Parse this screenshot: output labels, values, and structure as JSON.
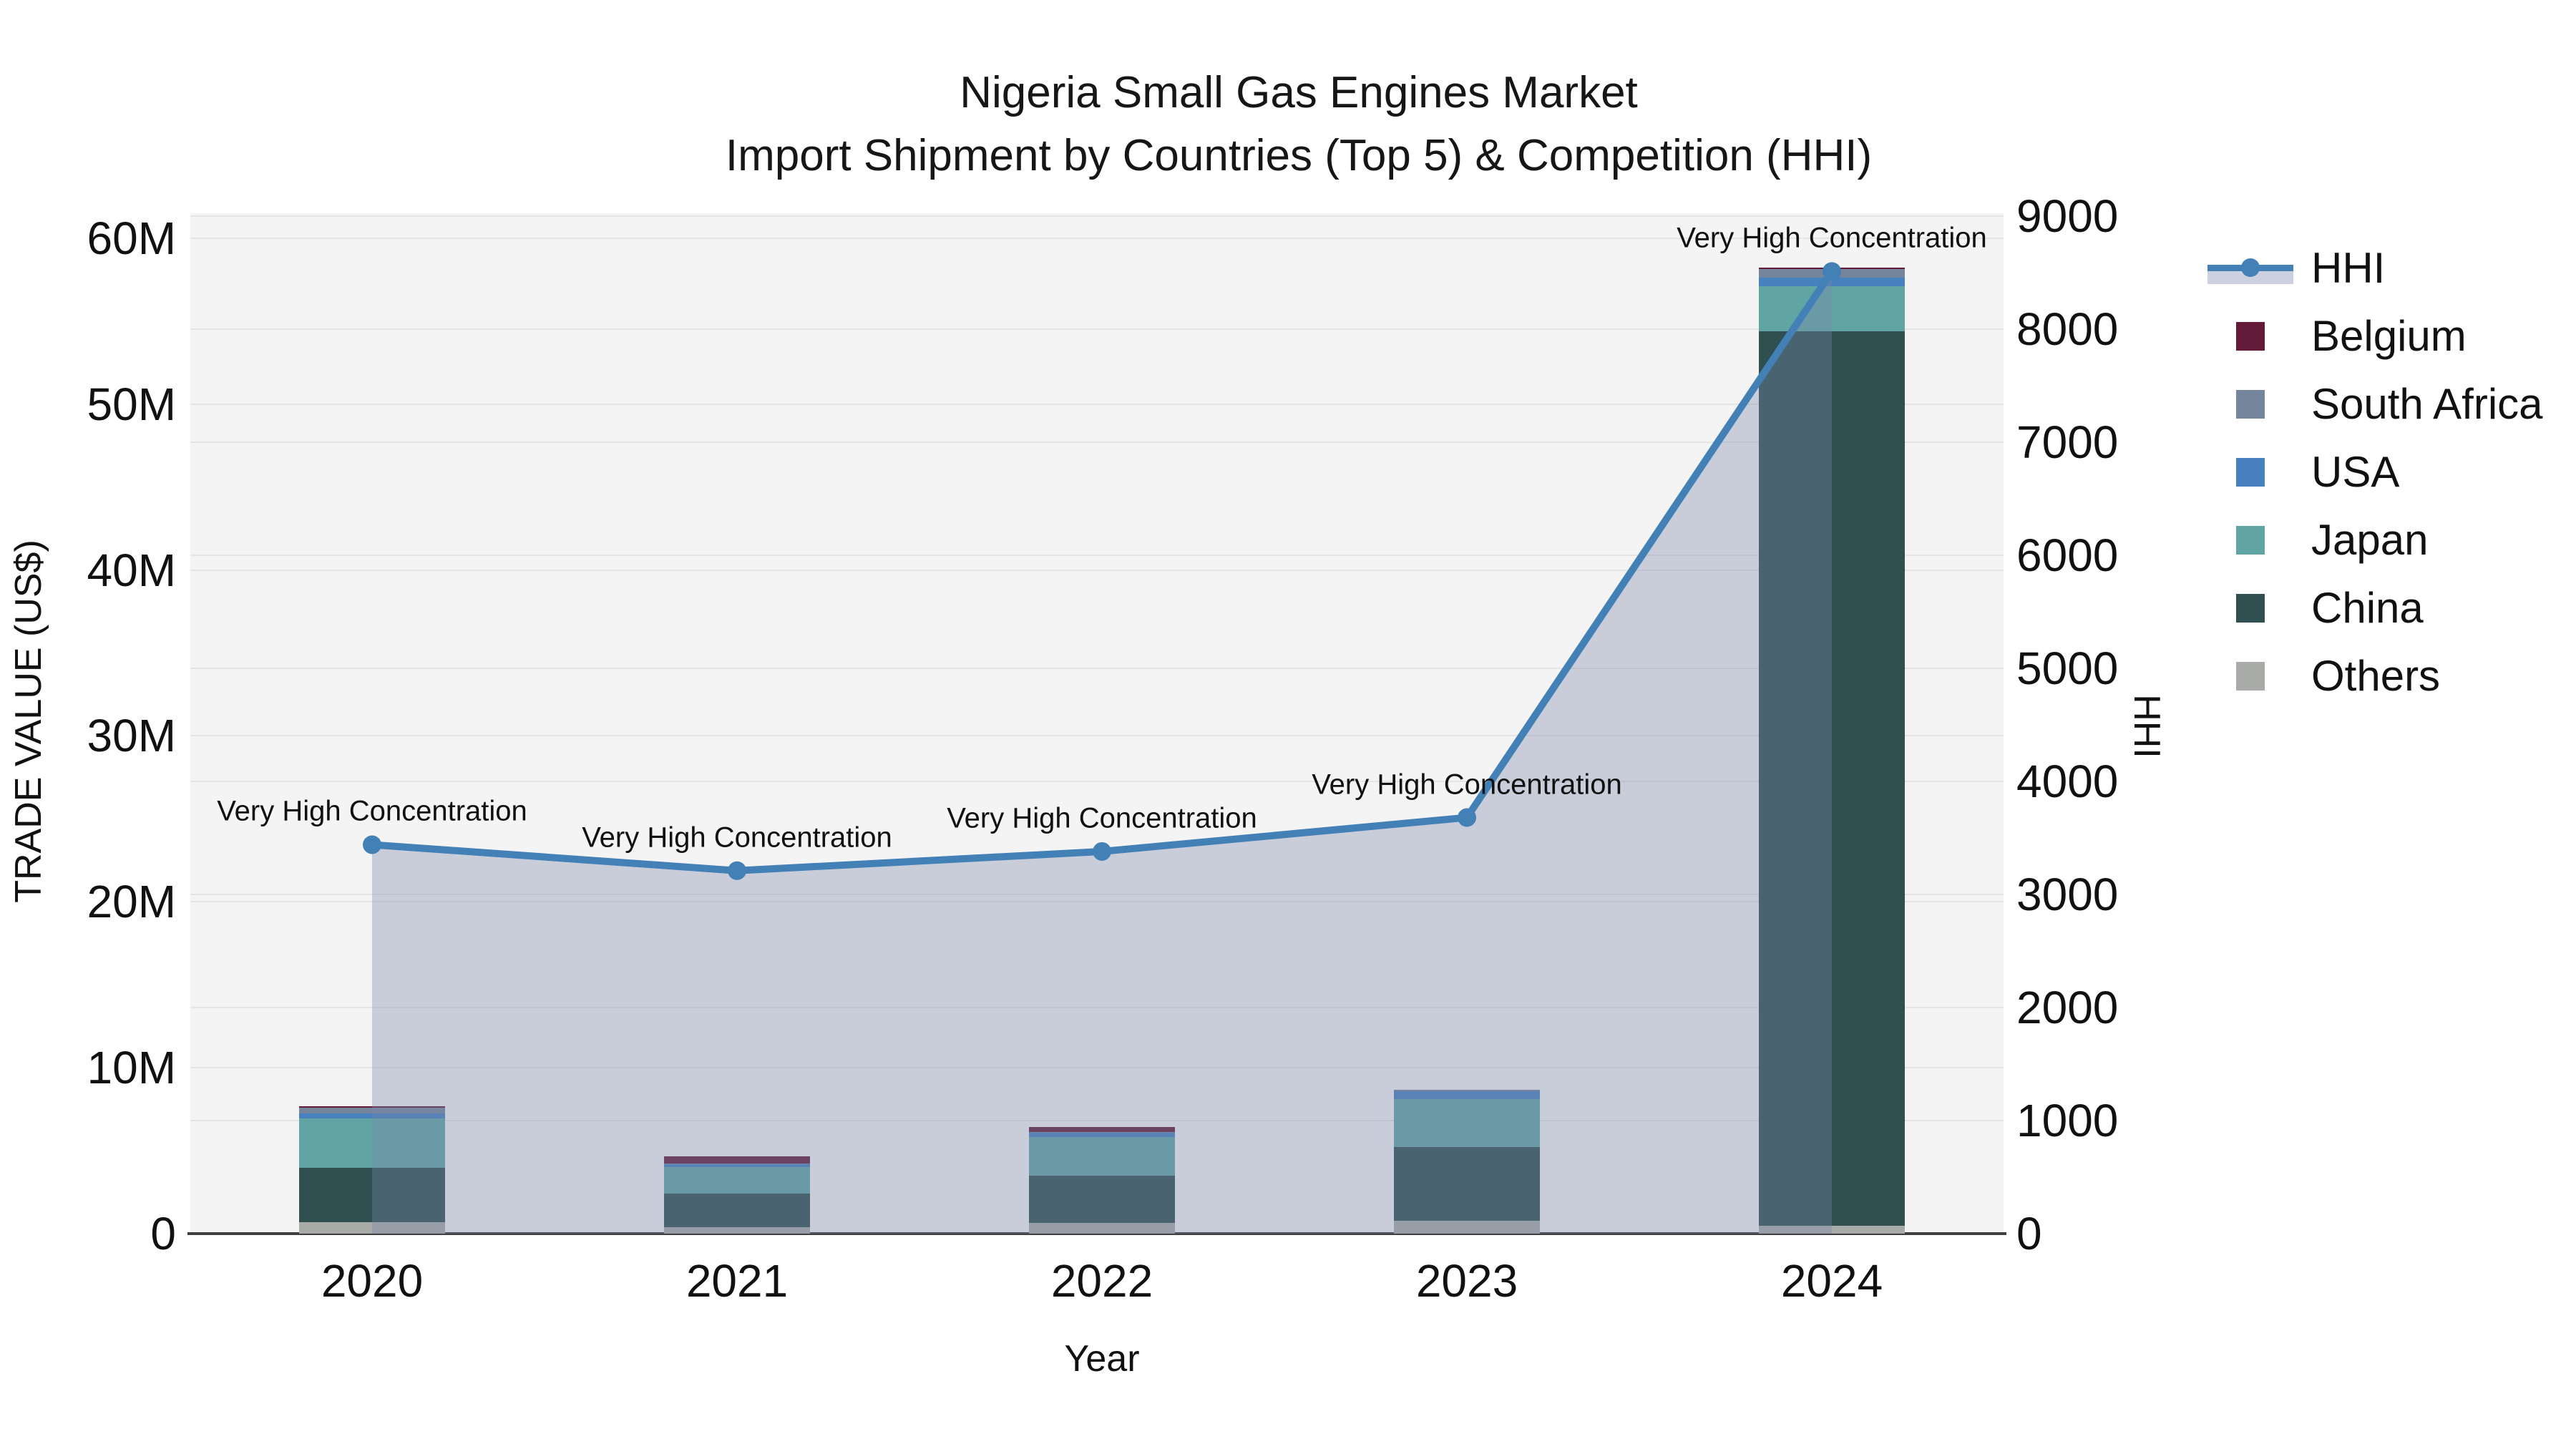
{
  "title": {
    "line1": "Nigeria Small Gas Engines Market",
    "line2": "Import Shipment by Countries (Top 5) & Competition (HHI)"
  },
  "colors": {
    "hhi_line": "#4380B5",
    "area_fill": "#7B89A8",
    "belgium": "#641B3A",
    "south_africa": "#75869C",
    "usa": "#4781BE",
    "japan": "#60A4A4",
    "china": "#2F4F50",
    "others": "#A9ABA8",
    "plot_bg": "#F4F4F4",
    "gridline": "#E5E5E5",
    "axis_line": "#3F3F3F",
    "legend_band": "#CBD1DE"
  },
  "legend": {
    "items": [
      {
        "label": "HHI",
        "type": "line",
        "color": "#4380B5"
      },
      {
        "label": "Belgium",
        "type": "square",
        "color": "#641B3A"
      },
      {
        "label": "South Africa",
        "type": "square",
        "color": "#75869C"
      },
      {
        "label": "USA",
        "type": "square",
        "color": "#4781BE"
      },
      {
        "label": "Japan",
        "type": "square",
        "color": "#60A4A4"
      },
      {
        "label": "China",
        "type": "square",
        "color": "#2F4F50"
      },
      {
        "label": "Others",
        "type": "square",
        "color": "#A9ABA8"
      }
    ]
  },
  "chart_data": {
    "type": "combo-stacked-bar-line",
    "x": [
      "2020",
      "2021",
      "2022",
      "2023",
      "2024"
    ],
    "xlabel": "Year",
    "ylabel_left": "TRADE VALUE (US$)",
    "ylabel_right": "HHI",
    "y_left_ticks": [
      {
        "label": "0",
        "value": 0
      },
      {
        "label": "10M",
        "value": 10
      },
      {
        "label": "20M",
        "value": 20
      },
      {
        "label": "30M",
        "value": 30
      },
      {
        "label": "40M",
        "value": 40
      },
      {
        "label": "50M",
        "value": 50
      },
      {
        "label": "60M",
        "value": 60
      }
    ],
    "y_left_max_musd": 61.5,
    "y_right_ticks": [
      {
        "label": "0",
        "value": 0
      },
      {
        "label": "1000",
        "value": 1000
      },
      {
        "label": "2000",
        "value": 2000
      },
      {
        "label": "3000",
        "value": 3000
      },
      {
        "label": "4000",
        "value": 4000
      },
      {
        "label": "5000",
        "value": 5000
      },
      {
        "label": "6000",
        "value": 6000
      },
      {
        "label": "7000",
        "value": 7000
      },
      {
        "label": "8000",
        "value": 8000
      },
      {
        "label": "9000",
        "value": 9000
      }
    ],
    "y_right_max": 9025,
    "bar_series": [
      {
        "name": "Others",
        "color": "#A9ABA8",
        "values_musd": [
          0.69,
          0.39,
          0.65,
          0.78,
          0.49
        ]
      },
      {
        "name": "China",
        "color": "#2F4F50",
        "values_musd": [
          3.28,
          2.03,
          2.85,
          4.44,
          53.9
        ]
      },
      {
        "name": "Japan",
        "color": "#60A4A4",
        "values_musd": [
          2.97,
          1.6,
          2.33,
          2.89,
          2.72
        ]
      },
      {
        "name": "USA",
        "color": "#4781BE",
        "values_musd": [
          0.3,
          0.17,
          0.26,
          0.47,
          0.5
        ]
      },
      {
        "name": "South Africa",
        "color": "#75869C",
        "values_musd": [
          0.35,
          0.03,
          0.04,
          0.1,
          0.52
        ]
      },
      {
        "name": "Belgium",
        "color": "#641B3A",
        "values_musd": [
          0.09,
          0.43,
          0.3,
          0.0,
          0.1
        ]
      }
    ],
    "line_series": {
      "name": "HHI",
      "color": "#4380B5",
      "values": [
        3440,
        3210,
        3380,
        3680,
        8510
      ],
      "area_fill": "#7B89A8",
      "area_opacity": 0.36
    },
    "annotations": [
      {
        "x": "2020",
        "text": "Very High Concentration"
      },
      {
        "x": "2021",
        "text": "Very High Concentration"
      },
      {
        "x": "2022",
        "text": "Very High Concentration"
      },
      {
        "x": "2023",
        "text": "Very High Concentration"
      },
      {
        "x": "2024",
        "text": "Very High Concentration"
      }
    ]
  }
}
